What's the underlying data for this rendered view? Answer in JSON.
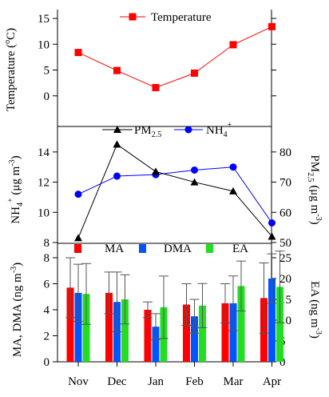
{
  "chart_data": [
    {
      "type": "line",
      "panel": "top",
      "categories": [
        "Nov",
        "Dec",
        "Jan",
        "Feb",
        "Mar",
        "Apr"
      ],
      "series": [
        {
          "name": "Temperature",
          "values": [
            8.4,
            4.9,
            1.6,
            4.4,
            9.9,
            13.4
          ],
          "color": "#ff0000",
          "marker": "square"
        }
      ],
      "ylabel": "Temperature (°C)",
      "ylim": [
        -5,
        15
      ],
      "yticks": [
        0,
        5,
        10,
        15
      ],
      "legend": "top-center"
    },
    {
      "type": "line",
      "panel": "middle",
      "categories": [
        "Nov",
        "Dec",
        "Jan",
        "Feb",
        "Mar",
        "Apr"
      ],
      "series": [
        {
          "name": "PM2.5",
          "axis": "right",
          "values": [
            51.5,
            82.5,
            73.5,
            70,
            67,
            52
          ],
          "color": "#000000",
          "marker": "triangle"
        },
        {
          "name": "NH4+",
          "axis": "left",
          "values": [
            11.2,
            12.4,
            12.5,
            12.8,
            13.0,
            9.3
          ],
          "color": "#0000ff",
          "marker": "circle"
        }
      ],
      "ylabel_left": "NH4+ (μg m-3)",
      "ylim_left": [
        8,
        15
      ],
      "yticks_left": [
        8,
        10,
        12,
        14
      ],
      "ylabel_right": "PM2.5 (μg m-3)",
      "ylim_right": [
        50,
        85
      ],
      "yticks_right": [
        50,
        60,
        70,
        80
      ],
      "legend": "top-center"
    },
    {
      "type": "bar",
      "panel": "bottom",
      "categories": [
        "Nov",
        "Dec",
        "Jan",
        "Feb",
        "Mar",
        "Apr"
      ],
      "series": [
        {
          "name": "MA",
          "axis": "left",
          "values": [
            5.7,
            5.3,
            4.0,
            4.4,
            4.5,
            4.9
          ],
          "errors": [
            2.3,
            1.6,
            0.6,
            1.6,
            1.5,
            2.7
          ],
          "color": "#ff0000"
        },
        {
          "name": "DMA",
          "axis": "left",
          "values": [
            5.3,
            4.6,
            2.7,
            3.5,
            4.5,
            6.4
          ],
          "errors": [
            2.2,
            2.3,
            1.0,
            1.3,
            2.1,
            1.9
          ],
          "color": "#0055ff"
        },
        {
          "name": "EA",
          "axis": "right",
          "values": [
            16.3,
            15.0,
            13.1,
            13.5,
            18.2,
            18.0
          ],
          "errors": [
            7.3,
            5.9,
            7.5,
            5.3,
            6.0,
            8.6
          ],
          "color": "#22dd22"
        }
      ],
      "ylabel_left": "MA, DMA (ng m-3)",
      "ylim_left": [
        0,
        8
      ],
      "yticks_left": [
        0,
        2,
        4,
        6,
        8
      ],
      "ylabel_right": "EA (ng m-3)",
      "ylim_right": [
        0,
        25
      ],
      "yticks_right": [
        0,
        5,
        10,
        15,
        20,
        25
      ],
      "legend": "top-center"
    }
  ]
}
